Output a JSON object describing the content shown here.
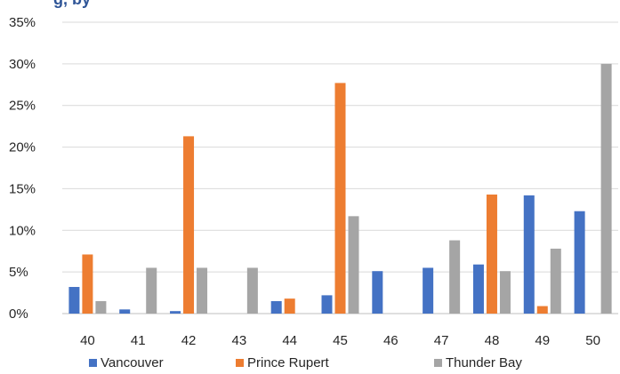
{
  "chart_data": {
    "type": "bar",
    "title_fragment": "g, by",
    "categories": [
      "40",
      "41",
      "42",
      "43",
      "44",
      "45",
      "46",
      "47",
      "48",
      "49",
      "50"
    ],
    "series": [
      {
        "name": "Vancouver",
        "color": "#4472C4",
        "values": [
          3.2,
          0.5,
          0.3,
          0.0,
          1.5,
          2.2,
          5.1,
          5.5,
          5.9,
          14.2,
          12.3
        ]
      },
      {
        "name": "Prince Rupert",
        "color": "#ED7D31",
        "values": [
          7.1,
          0.0,
          21.3,
          0.0,
          1.8,
          27.7,
          0.0,
          0.0,
          14.3,
          0.9,
          0.0
        ]
      },
      {
        "name": "Thunder Bay",
        "color": "#A5A5A5",
        "values": [
          1.5,
          5.5,
          5.5,
          5.5,
          0.0,
          11.7,
          0.0,
          8.8,
          5.1,
          7.8,
          30.0
        ]
      }
    ],
    "y_ticks": [
      "0%",
      "5%",
      "10%",
      "15%",
      "20%",
      "25%",
      "30%",
      "35%"
    ],
    "ylim": [
      0,
      35
    ],
    "y_unit": "%",
    "grid": true,
    "legend_position": "bottom",
    "xlabel": "",
    "ylabel": ""
  }
}
